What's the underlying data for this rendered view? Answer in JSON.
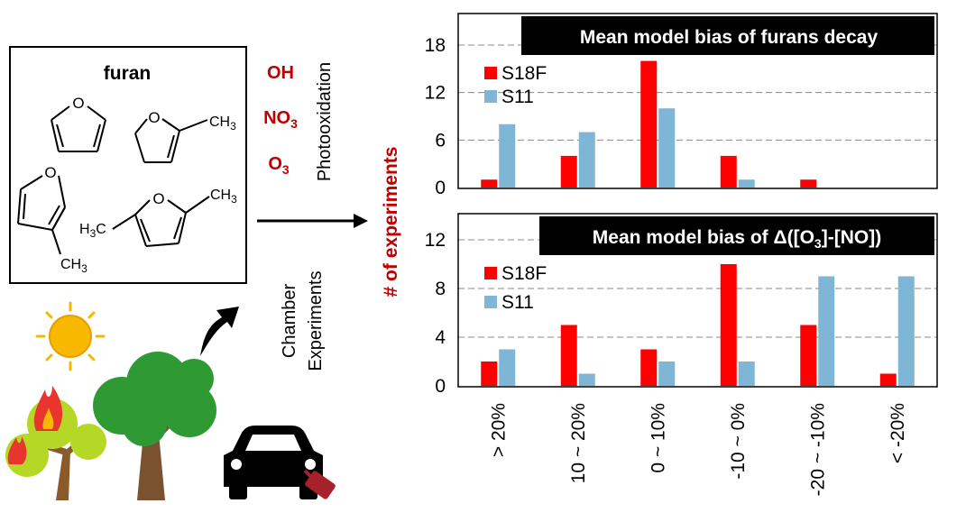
{
  "left_panel": {
    "title": "furan",
    "oxidants": [
      {
        "base": "OH",
        "sub": ""
      },
      {
        "base": "NO",
        "sub": "3"
      },
      {
        "base": "O",
        "sub": "3"
      }
    ],
    "process_label": "Photooxidation",
    "methyl_labels": {
      "ch3_right": "CH",
      "ch3_sub": "3",
      "h3c_left": "H",
      "h3c_sub": "3",
      "h3c_c": "C"
    },
    "chamber_label_1": "Chamber",
    "chamber_label_2": "Experiments",
    "colors": {
      "oxidant": "#c00000",
      "sun": "#f5b800",
      "tree": "#2e8b2e",
      "flame": "#e8352e",
      "car": "#000000",
      "trunk": "#7a5230"
    }
  },
  "y_axis_title": "# of experiments",
  "x_categories": [
    "> 20%",
    "10 ~ 20%",
    "0 ~ 10%",
    "-10 ~ 0%",
    "-20 ~ -10%",
    "< -20%"
  ],
  "colors": {
    "S18F": "#ff0000",
    "S11": "#7fb5d5",
    "label_red": "#c00000"
  },
  "chart_data": [
    {
      "type": "bar",
      "title": "Mean model bias of furans decay",
      "categories": [
        "> 20%",
        "10 ~ 20%",
        "0 ~ 10%",
        "-10 ~ 0%",
        "-20 ~ -10%",
        "< -20%"
      ],
      "series": [
        {
          "name": "S18F",
          "values": [
            1,
            4,
            16,
            4,
            1,
            0
          ]
        },
        {
          "name": "S11",
          "values": [
            8,
            7,
            10,
            1,
            0,
            0
          ]
        }
      ],
      "ylim": [
        0,
        18
      ],
      "yticks": [
        0,
        6,
        12,
        18
      ],
      "grid": true,
      "legend": "top-left"
    },
    {
      "type": "bar",
      "title": "Mean model bias of Δ([O3]-[NO])",
      "title_parts": {
        "pre": "Mean model bias of Δ([O",
        "sub": "3",
        "post": "]-[NO])"
      },
      "categories": [
        "> 20%",
        "10 ~ 20%",
        "0 ~ 10%",
        "-10 ~ 0%",
        "-20 ~ -10%",
        "< -20%"
      ],
      "series": [
        {
          "name": "S18F",
          "values": [
            2,
            5,
            3,
            10,
            5,
            1
          ]
        },
        {
          "name": "S11",
          "values": [
            3,
            1,
            2,
            2,
            9,
            9
          ]
        }
      ],
      "ylim": [
        0,
        14
      ],
      "yticks": [
        0,
        4,
        8,
        12
      ],
      "grid": true,
      "legend": "top-left"
    }
  ]
}
